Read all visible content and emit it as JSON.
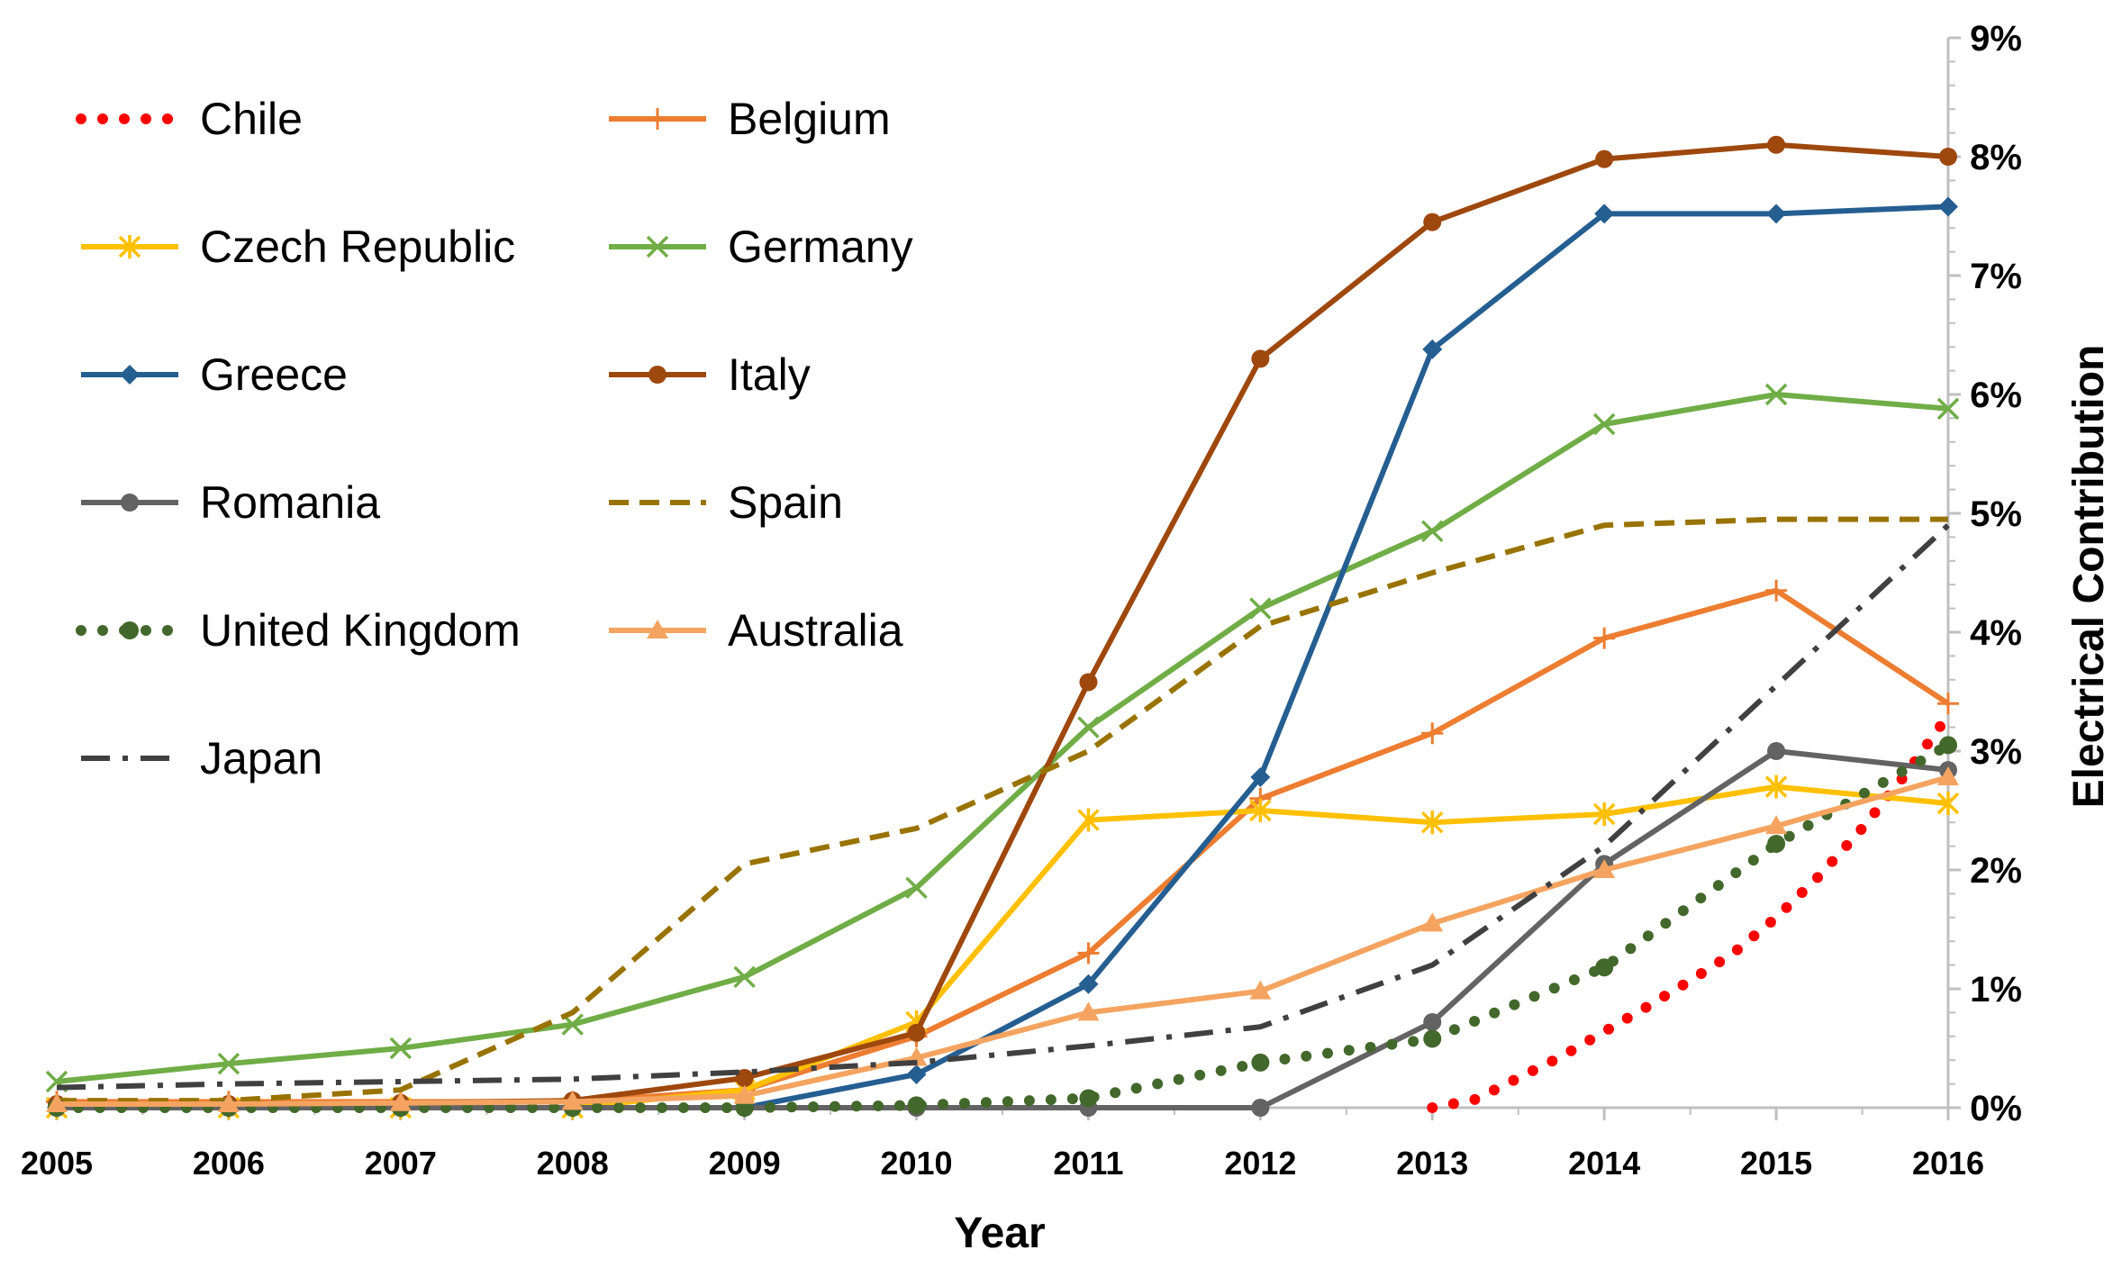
{
  "chart_data": {
    "type": "line",
    "title": "",
    "xlabel": "Year",
    "ylabel": "Electrical Contribution",
    "x": [
      2005,
      2006,
      2007,
      2008,
      2009,
      2010,
      2011,
      2012,
      2013,
      2014,
      2015,
      2016
    ],
    "x_tick_labels": [
      "2005",
      "2006",
      "2007",
      "2008",
      "2009",
      "2010",
      "2011",
      "2012",
      "2013",
      "2014",
      "2015",
      "2016"
    ],
    "y_tick_labels": [
      "0%",
      "1%",
      "2%",
      "3%",
      "4%",
      "5%",
      "6%",
      "7%",
      "8%",
      "9%"
    ],
    "ylim": [
      0,
      9
    ],
    "y_axis_position": "right",
    "grid": false,
    "legend_position": "top-left",
    "series": [
      {
        "name": "Chile",
        "color": "#FF0000",
        "style": "dotted",
        "marker": "none",
        "x": [
          2013,
          2013.25,
          2013.5,
          2013.75,
          2014,
          2014.25,
          2014.5,
          2014.75,
          2015,
          2015.25,
          2015.5,
          2015.75,
          2016
        ],
        "values": [
          0,
          0.07,
          0.25,
          0.43,
          0.64,
          0.85,
          1.07,
          1.3,
          1.6,
          1.95,
          2.35,
          2.8,
          3.3
        ]
      },
      {
        "name": "Belgium",
        "color": "#ED7D31",
        "style": "solid",
        "marker": "plus",
        "values": [
          0.05,
          0.05,
          0.05,
          0.05,
          0.15,
          0.6,
          1.3,
          2.6,
          3.15,
          3.95,
          4.35,
          3.4
        ]
      },
      {
        "name": "Czech Republic",
        "color": "#FFC000",
        "style": "solid",
        "marker": "star",
        "values": [
          0,
          0,
          0,
          0,
          0.15,
          0.72,
          2.42,
          2.5,
          2.4,
          2.47,
          2.7,
          2.56
        ]
      },
      {
        "name": "Germany",
        "color": "#70AD47",
        "style": "solid",
        "marker": "x",
        "values": [
          0.22,
          0.37,
          0.5,
          0.7,
          1.1,
          1.85,
          3.2,
          4.2,
          4.85,
          5.75,
          6.0,
          5.88
        ]
      },
      {
        "name": "Greece",
        "color": "#255E91",
        "style": "solid",
        "marker": "diamond",
        "values": [
          0,
          0,
          0,
          0,
          0,
          0.28,
          1.04,
          2.78,
          6.38,
          7.52,
          7.52,
          7.58
        ]
      },
      {
        "name": "Italy",
        "color": "#9E480E",
        "style": "solid",
        "marker": "circle",
        "values": [
          0.03,
          0.03,
          0.04,
          0.06,
          0.25,
          0.63,
          3.58,
          6.3,
          7.45,
          7.98,
          8.1,
          8.0
        ]
      },
      {
        "name": "Romania",
        "color": "#636363",
        "style": "solid",
        "marker": "circle",
        "values": [
          0,
          0,
          0,
          0,
          0,
          0,
          0,
          0,
          0.72,
          2.05,
          3.0,
          2.84
        ]
      },
      {
        "name": "Spain",
        "color": "#997300",
        "style": "dashed",
        "marker": "none",
        "values": [
          0.06,
          0.06,
          0.15,
          0.8,
          2.05,
          2.35,
          3.0,
          4.05,
          4.5,
          4.9,
          4.95,
          4.95
        ]
      },
      {
        "name": "United Kingdom",
        "color": "#43682B",
        "style": "dotted",
        "marker": "circle",
        "values": [
          0,
          0,
          0,
          0,
          0,
          0.02,
          0.08,
          0.38,
          0.58,
          1.18,
          2.22,
          3.05
        ]
      },
      {
        "name": "Australia",
        "color": "#F4A460",
        "style": "solid",
        "marker": "triangle",
        "values": [
          0.03,
          0.03,
          0.04,
          0.05,
          0.1,
          0.42,
          0.8,
          0.98,
          1.55,
          2.0,
          2.37,
          2.78
        ]
      },
      {
        "name": "Japan",
        "color": "#404040",
        "style": "dashdot",
        "marker": "none",
        "values": [
          0.17,
          0.2,
          0.22,
          0.24,
          0.3,
          0.38,
          0.52,
          0.68,
          1.2,
          2.2,
          3.55,
          4.9
        ]
      }
    ]
  }
}
